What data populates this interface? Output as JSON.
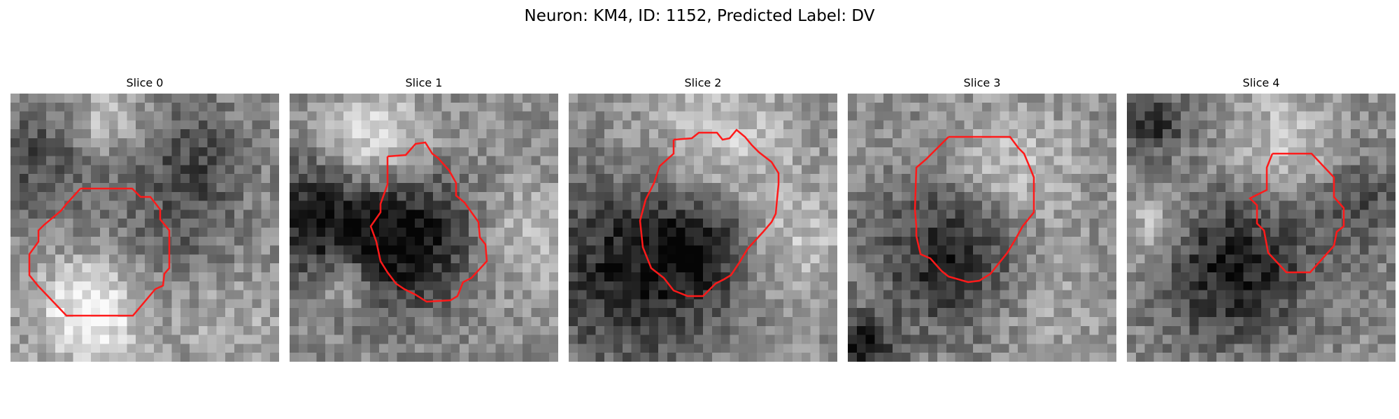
{
  "figure": {
    "title": "Neuron: KM4, ID: 1152, Predicted Label: DV"
  },
  "outline_color": "#ff1a1a",
  "colormap": "gray",
  "panels": [
    {
      "title": "Slice 0"
    },
    {
      "title": "Slice 1"
    },
    {
      "title": "Slice 2"
    },
    {
      "title": "Slice 3"
    },
    {
      "title": "Slice 4"
    }
  ]
}
